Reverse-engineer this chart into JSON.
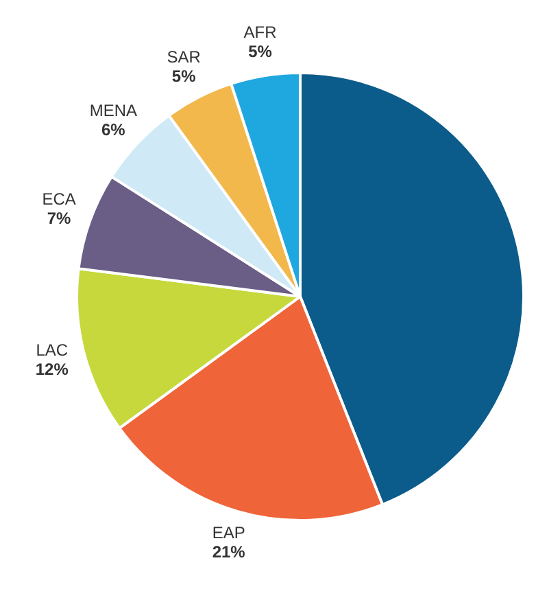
{
  "chart_data": {
    "type": "pie",
    "categories": [
      null,
      "EAP",
      "LAC",
      "ECA",
      "MENA",
      "SAR",
      "AFR"
    ],
    "values": [
      44,
      21,
      12,
      7,
      6,
      5,
      5
    ],
    "colors": [
      "#0b5c8a",
      "#ef6439",
      "#c6d83c",
      "#6a5d86",
      "#cfe9f6",
      "#f2b84b",
      "#1fa7df"
    ],
    "value_labels": [
      null,
      "21%",
      "12%",
      "7%",
      "6%",
      "5%",
      "5%"
    ],
    "legend": false
  }
}
